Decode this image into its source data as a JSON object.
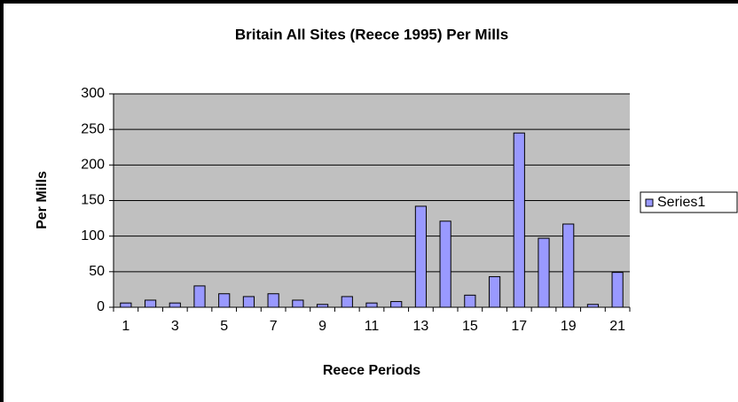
{
  "chart_data": {
    "type": "bar",
    "title": "Britain All Sites (Reece 1995) Per Mills",
    "x_label": "Reece Periods",
    "y_label": "Per Mills",
    "categories": [
      1,
      null,
      3,
      null,
      5,
      null,
      7,
      null,
      9,
      null,
      11,
      null,
      13,
      null,
      15,
      null,
      17,
      null,
      19,
      null,
      21
    ],
    "series": [
      {
        "name": "Series1",
        "color": "#9999ff",
        "values": [
          6,
          10,
          6,
          30,
          19,
          15,
          19,
          10,
          4,
          15,
          6,
          8,
          142,
          121,
          17,
          43,
          245,
          97,
          117,
          4,
          49
        ]
      }
    ],
    "ylim": [
      0,
      300
    ],
    "yticks": [
      0,
      50,
      100,
      150,
      200,
      250,
      300
    ],
    "grid": true,
    "legend": "right"
  }
}
